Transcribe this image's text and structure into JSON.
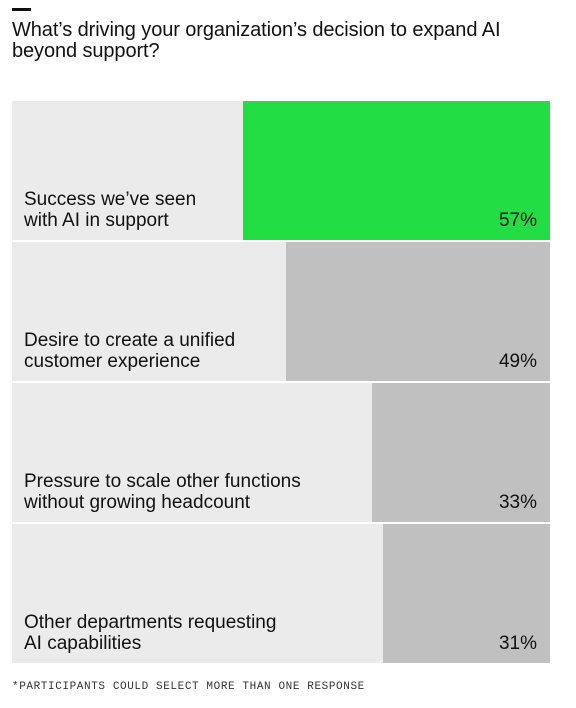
{
  "title": "What’s driving your organization’s decision to expand AI beyond support?",
  "footnote": "*PARTICIPANTS COULD SELECT MORE THAN ONE RESPONSE",
  "colors": {
    "highlight": "#22dd44",
    "bar": "#c0c0c0",
    "track": "#ebebeb"
  },
  "chart_data": {
    "type": "bar",
    "orientation": "horizontal",
    "title": "What’s driving your organization’s decision to expand AI beyond support?",
    "categories": [
      "Success we’ve seen\nwith AI in support",
      "Desire to create a unified\ncustomer experience",
      "Pressure to scale other functions\nwithout growing headcount",
      "Other departments requesting\nAI capabilities"
    ],
    "values": [
      57,
      49,
      33,
      31
    ],
    "value_labels": [
      "57%",
      "49%",
      "33%",
      "31%"
    ],
    "highlight_index": 0,
    "ylim": [
      0,
      100
    ],
    "grid": false
  }
}
